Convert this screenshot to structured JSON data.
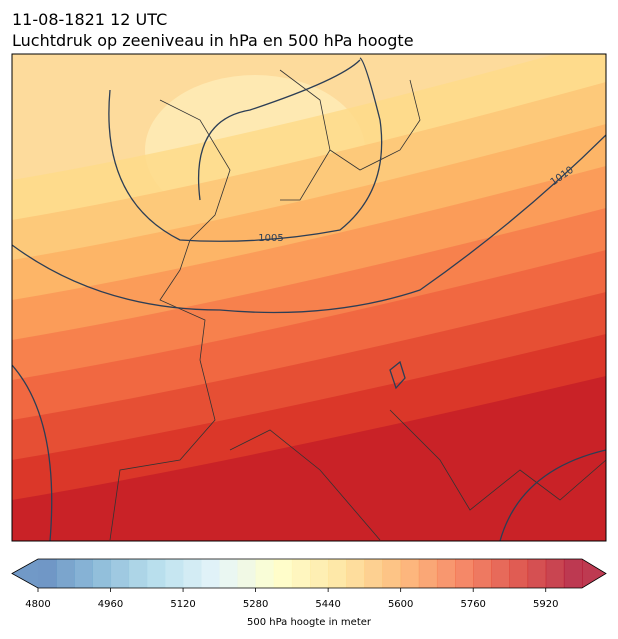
{
  "title": {
    "line1": "11-08-1821 12 UTC",
    "line2": "Luchtdruk op zeeniveau in hPa en 500 hPa hoogte"
  },
  "contour_labels": [
    1005,
    1010
  ],
  "colorbar": {
    "label": "500 hPa hoogte in meter",
    "lim": [
      4800,
      6000
    ],
    "ticks": [
      4800,
      4960,
      5120,
      5280,
      5440,
      5600,
      5760,
      5920
    ]
  }
}
